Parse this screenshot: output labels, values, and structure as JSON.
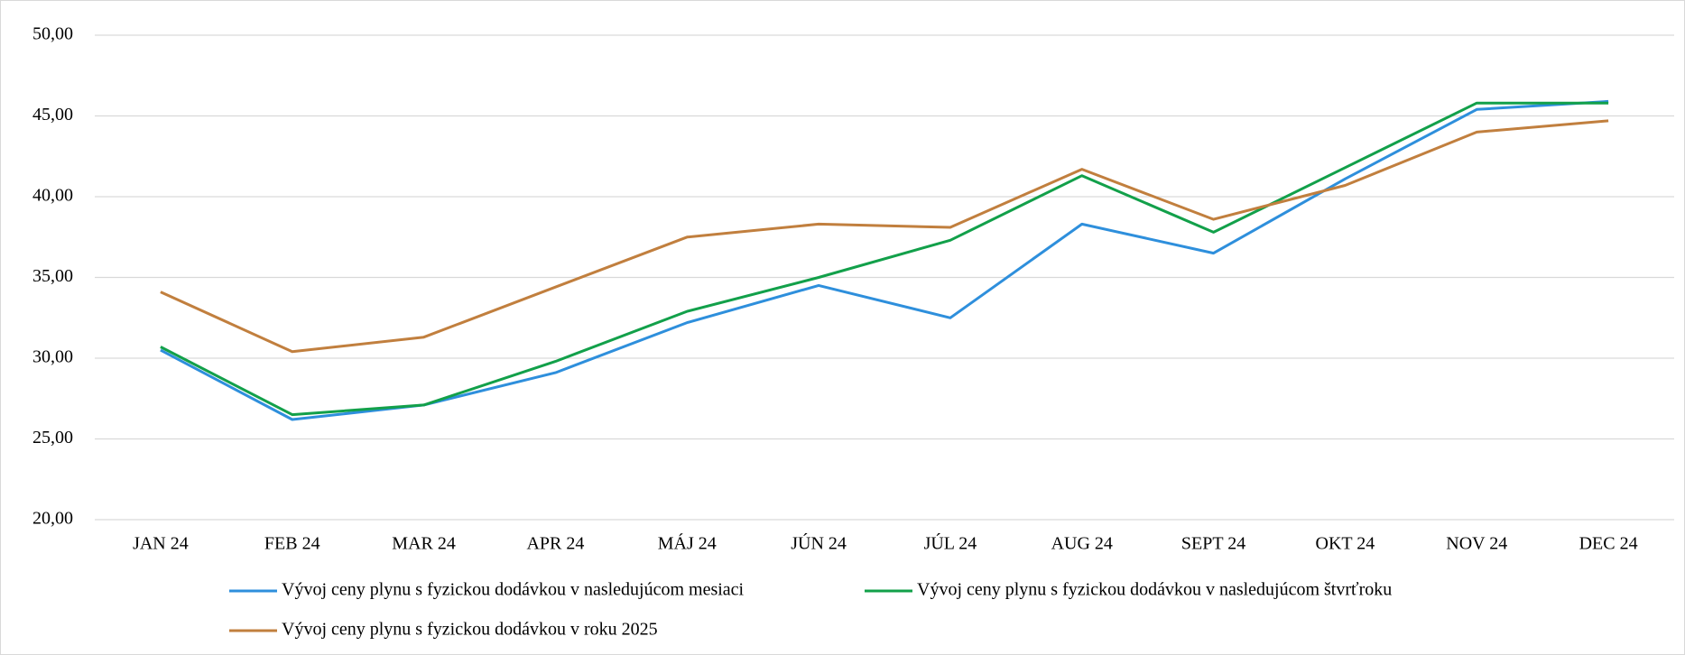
{
  "chart_data": {
    "type": "line",
    "categories": [
      "JAN 24",
      "FEB 24",
      "MAR 24",
      "APR 24",
      "MÁJ 24",
      "JÚN 24",
      "JÚL 24",
      "AUG 24",
      "SEPT 24",
      "OKT 24",
      "NOV 24",
      "DEC 24"
    ],
    "series": [
      {
        "name": "Vývoj ceny plynu s fyzickou dodávkou v nasledujúcom mesiaci",
        "color": "#2e8fdc",
        "values": [
          30.5,
          26.2,
          27.1,
          29.1,
          32.2,
          34.5,
          32.5,
          38.3,
          36.5,
          41.1,
          45.4,
          45.9
        ]
      },
      {
        "name": "Vývoj ceny plynu s fyzickou dodávkou v nasledujúcom štvrťroku",
        "color": "#12a04a",
        "values": [
          30.7,
          26.5,
          27.1,
          29.8,
          32.9,
          35.0,
          37.3,
          41.3,
          37.8,
          41.8,
          45.8,
          45.8
        ]
      },
      {
        "name": "Vývoj ceny plynu s fyzickou dodávkou v roku 2025",
        "color": "#c17f3e",
        "values": [
          34.1,
          30.4,
          31.3,
          34.4,
          37.5,
          38.3,
          38.1,
          41.7,
          38.6,
          40.7,
          44.0,
          44.7
        ]
      }
    ],
    "ylim": [
      20,
      50
    ],
    "yticks": [
      {
        "value": 20,
        "label": "20,00"
      },
      {
        "value": 25,
        "label": "25,00"
      },
      {
        "value": 30,
        "label": "30,00"
      },
      {
        "value": 35,
        "label": "35,00"
      },
      {
        "value": 40,
        "label": "40,00"
      },
      {
        "value": 45,
        "label": "45,00"
      },
      {
        "value": 50,
        "label": "50,00"
      }
    ],
    "grid": true,
    "legend": "bottom"
  }
}
